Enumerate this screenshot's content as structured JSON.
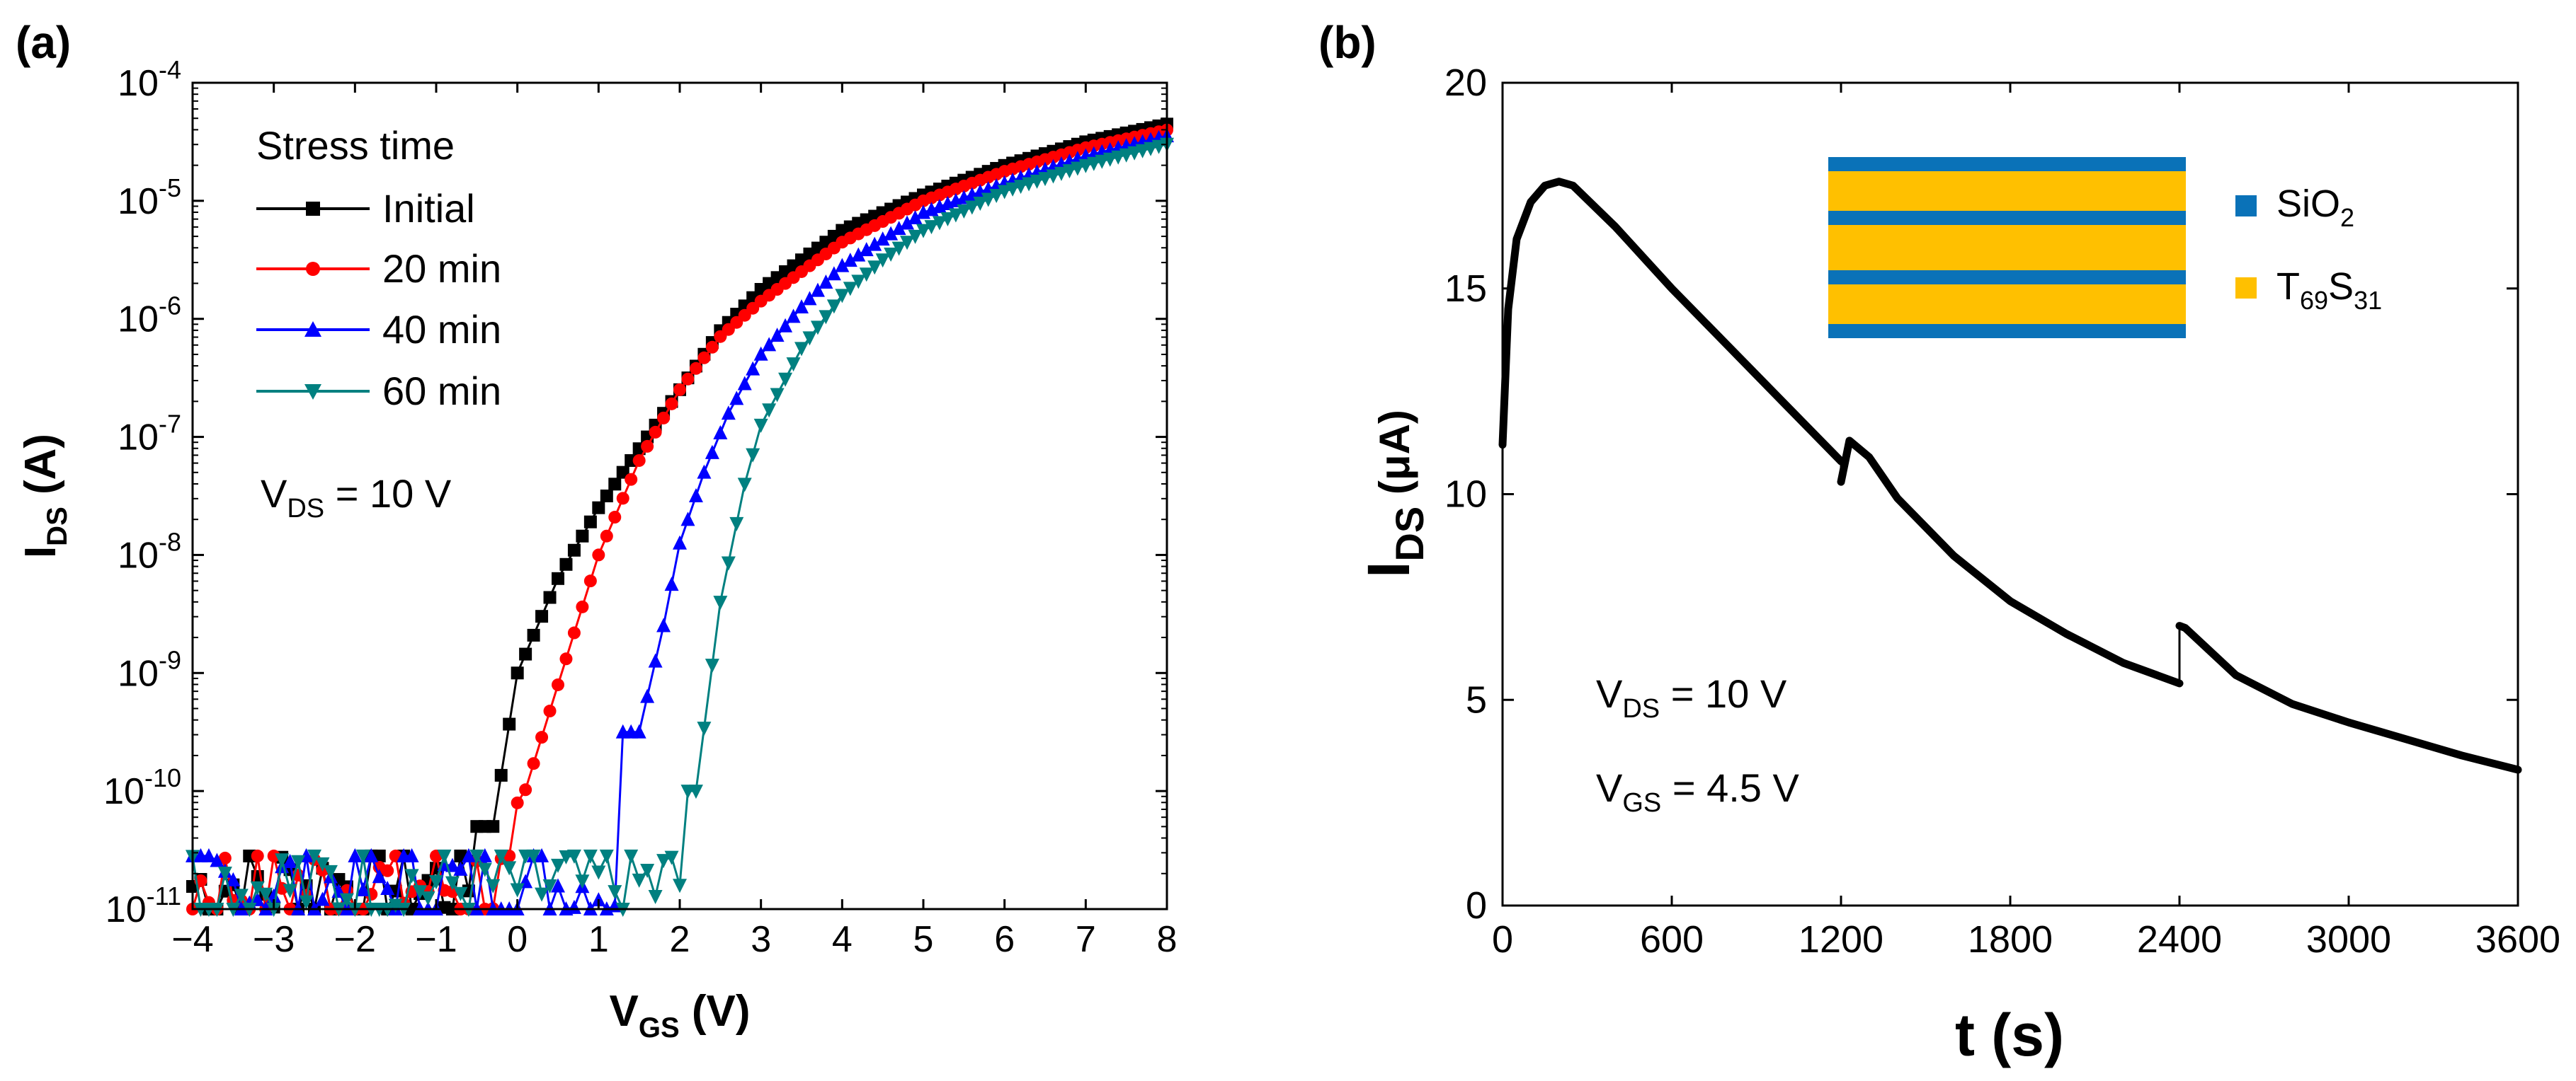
{
  "colors": {
    "initial": "#000000",
    "m20": "#ff0000",
    "m40": "#0000ff",
    "m60": "#008080",
    "sio2": "#0a72b8",
    "tes": "#ffc000"
  },
  "chart_data": [
    {
      "panel": "(a)",
      "type": "line",
      "xlabel": "V",
      "xlabel_sub": "GS",
      "xlabel_unit": " (V)",
      "ylabel": "I",
      "ylabel_sub": "DS",
      "ylabel_unit": " (A)",
      "xlim": [
        -4,
        8
      ],
      "xticks": [
        "−4",
        "−3",
        "−2",
        "−1",
        "0",
        "1",
        "2",
        "3",
        "4",
        "5",
        "6",
        "7",
        "8"
      ],
      "yscale": "log",
      "ylim_exp": [
        -11,
        -4
      ],
      "yticks": [
        "-11",
        "-10",
        "-9",
        "-8",
        "-7",
        "-6",
        "-5",
        "-4"
      ],
      "ytick_base": "10",
      "legend_title": "Stress time",
      "annotation": {
        "main": "V",
        "sub": "DS",
        "rest": " = 10 V"
      },
      "noise_floor_log": -10.8,
      "series": [
        {
          "name": "Initial",
          "color": "#000000",
          "marker": "square",
          "onset": -0.55,
          "x": [
            -0.3,
            0.0,
            0.5,
            1.0,
            1.5,
            2.0,
            2.5,
            3.0,
            4.0,
            5.0,
            6.0,
            7.0,
            8.0
          ],
          "log_y": [
            -10.3,
            -9.0,
            -8.2,
            -7.6,
            -7.1,
            -6.6,
            -6.1,
            -5.75,
            -5.25,
            -4.95,
            -4.7,
            -4.5,
            -4.35
          ]
        },
        {
          "name": "20 min",
          "color": "#ff0000",
          "marker": "circle",
          "onset": -0.05,
          "x": [
            0.05,
            0.5,
            1.0,
            1.5,
            2.0,
            2.5,
            3.0,
            4.0,
            5.0,
            6.0,
            7.0,
            8.0
          ],
          "log_y": [
            -10.1,
            -9.1,
            -8.0,
            -7.2,
            -6.6,
            -6.15,
            -5.85,
            -5.35,
            -5.0,
            -4.75,
            -4.55,
            -4.4
          ]
        },
        {
          "name": "40 min",
          "color": "#0000ff",
          "marker": "triangle-up",
          "onset": 1.3,
          "x": [
            1.5,
            1.8,
            2.0,
            2.3,
            2.6,
            3.0,
            3.5,
            4.0,
            5.0,
            6.0,
            7.0,
            8.0
          ],
          "log_y": [
            -9.5,
            -8.6,
            -7.9,
            -7.3,
            -6.8,
            -6.3,
            -5.9,
            -5.55,
            -5.1,
            -4.85,
            -4.62,
            -4.45
          ]
        },
        {
          "name": "60 min",
          "color": "#008080",
          "marker": "triangle-down",
          "onset": 2.1,
          "x": [
            2.2,
            2.5,
            2.8,
            3.0,
            3.5,
            4.0,
            4.5,
            5.0,
            6.0,
            7.0,
            8.0
          ],
          "log_y": [
            -10.0,
            -8.4,
            -7.4,
            -6.9,
            -6.25,
            -5.8,
            -5.5,
            -5.25,
            -4.92,
            -4.7,
            -4.52
          ]
        }
      ]
    },
    {
      "panel": "(b)",
      "type": "line",
      "xlabel": "t (s)",
      "ylabel": "I",
      "ylabel_sub": "DS",
      "ylabel_unit": " (μA)",
      "xlim": [
        0,
        3600
      ],
      "ylim": [
        0,
        20
      ],
      "xticks": [
        "0",
        "600",
        "1200",
        "1800",
        "2400",
        "3000",
        "3600"
      ],
      "yticks": [
        "0",
        "5",
        "10",
        "15",
        "20"
      ],
      "annotations": [
        {
          "main": "V",
          "sub": "DS",
          "rest": " = 10 V"
        },
        {
          "main": "V",
          "sub": "GS",
          "rest": " = 4.5 V"
        }
      ],
      "legend": [
        {
          "label": "SiO",
          "sub": "2",
          "label2": "",
          "sub2": "",
          "color": "#0a72b8"
        },
        {
          "label": "T",
          "sub": "69",
          "label2": "S",
          "sub2": "31",
          "color": "#ffc000"
        }
      ],
      "series": [
        {
          "name": "I_DS",
          "color": "#000000",
          "segments": [
            {
              "t": [
                0,
                20,
                50,
                100,
                150,
                200,
                250,
                400,
                600,
                800,
                1000,
                1200
              ],
              "i": [
                11.2,
                14.5,
                16.2,
                17.1,
                17.5,
                17.6,
                17.5,
                16.5,
                15.0,
                13.6,
                12.2,
                10.8
              ]
            },
            {
              "t": [
                1200,
                1230,
                1300,
                1400,
                1600,
                1800,
                2000,
                2200,
                2400
              ],
              "i": [
                10.3,
                11.3,
                10.9,
                9.9,
                8.5,
                7.4,
                6.6,
                5.9,
                5.4
              ]
            },
            {
              "t": [
                2400,
                2420,
                2600,
                2800,
                3000,
                3200,
                3400,
                3600
              ],
              "i": [
                6.8,
                6.75,
                5.6,
                4.9,
                4.45,
                4.05,
                3.65,
                3.3
              ]
            }
          ]
        }
      ]
    }
  ]
}
